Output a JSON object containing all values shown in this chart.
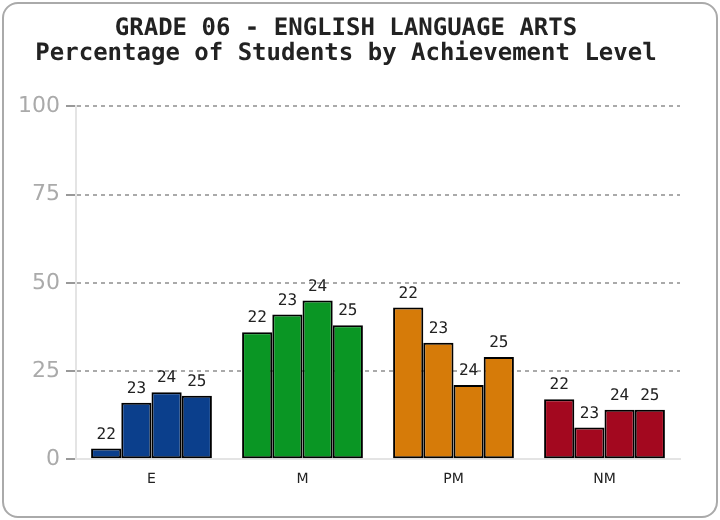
{
  "chart_data": {
    "type": "bar",
    "title": "GRADE 06 - ENGLISH LANGUAGE ARTS",
    "subtitle": "Percentage of Students by Achievement Level",
    "categories": [
      "E",
      "M",
      "PM",
      "NM"
    ],
    "series": [
      {
        "name": "22",
        "colors": [
          "#0b3f8c",
          "#0a9624",
          "#d67b09",
          "#a3081f"
        ],
        "values": [
          3,
          36,
          43,
          17
        ]
      },
      {
        "name": "23",
        "colors": [
          "#0b3f8c",
          "#0a9624",
          "#d67b09",
          "#a3081f"
        ],
        "values": [
          16,
          41,
          33,
          9
        ]
      },
      {
        "name": "24",
        "colors": [
          "#0b3f8c",
          "#0a9624",
          "#d67b09",
          "#a3081f"
        ],
        "values": [
          19,
          45,
          21,
          14
        ]
      },
      {
        "name": "25",
        "colors": [
          "#0b3f8c",
          "#0a9624",
          "#d67b09",
          "#a3081f"
        ],
        "values": [
          18,
          38,
          29,
          14
        ]
      }
    ],
    "ylim": [
      0,
      100
    ],
    "yticks": [
      0,
      25,
      50,
      75,
      100
    ],
    "grid": "y",
    "legend": false
  }
}
